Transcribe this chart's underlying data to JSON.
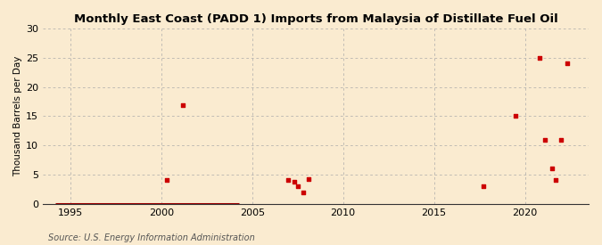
{
  "title": "Monthly East Coast (PADD 1) Imports from Malaysia of Distillate Fuel Oil",
  "ylabel": "Thousand Barrels per Day",
  "source": "Source: U.S. Energy Information Administration",
  "background_color": "#faebd0",
  "plot_bg_color": "#faebd0",
  "marker_color": "#cc0000",
  "line_color": "#990000",
  "xlim": [
    1993.5,
    2023.5
  ],
  "ylim": [
    0,
    30
  ],
  "yticks": [
    0,
    5,
    10,
    15,
    20,
    25,
    30
  ],
  "xticks": [
    1995,
    2000,
    2005,
    2010,
    2015,
    2020
  ],
  "data_points": [
    [
      2000.3,
      4.0
    ],
    [
      2001.2,
      16.8
    ],
    [
      2007.0,
      4.0
    ],
    [
      2007.3,
      3.8
    ],
    [
      2007.5,
      3.0
    ],
    [
      2007.8,
      2.0
    ],
    [
      2008.1,
      4.2
    ],
    [
      2017.7,
      3.0
    ],
    [
      2019.5,
      15.0
    ],
    [
      2020.8,
      25.0
    ],
    [
      2021.1,
      11.0
    ],
    [
      2021.5,
      6.0
    ],
    [
      2021.7,
      4.0
    ],
    [
      2022.0,
      11.0
    ],
    [
      2022.3,
      24.0
    ]
  ],
  "zero_line_x_start": 1994.2,
  "zero_line_x_end": 2004.3
}
